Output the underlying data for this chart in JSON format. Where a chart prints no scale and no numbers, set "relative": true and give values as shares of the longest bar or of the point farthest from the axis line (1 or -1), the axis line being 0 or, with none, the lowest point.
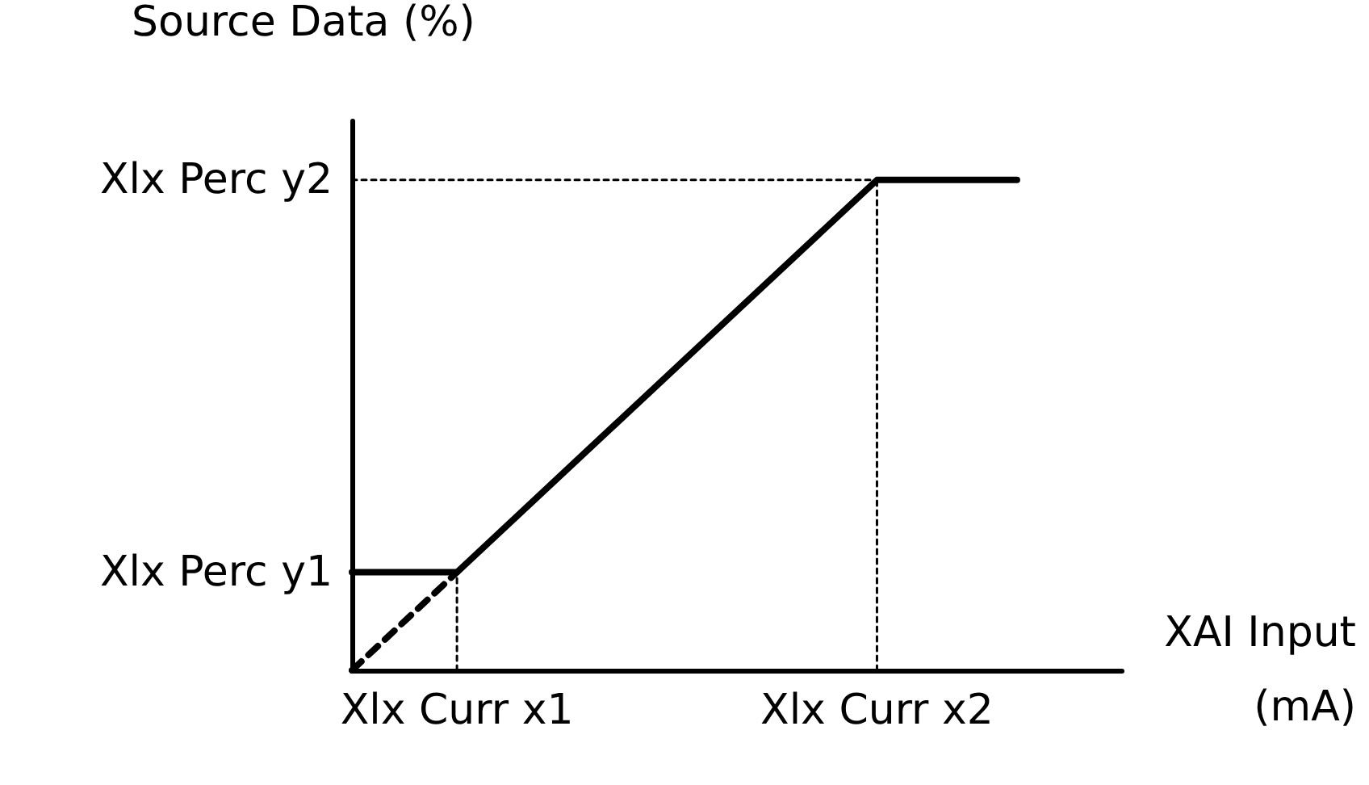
{
  "chart_data": {
    "type": "line",
    "xlabel": "XAI Input\n(mA)",
    "ylabel": "Source Data (%)",
    "relative": true,
    "categories": [
      null,
      null,
      null,
      "Xlx Curr x1",
      null,
      null,
      null,
      null,
      null,
      null,
      null,
      null,
      null,
      null,
      null,
      "Xlx Curr x2",
      null,
      null,
      null,
      null,
      null,
      null,
      null
    ],
    "annotations": [
      "Xlx Perc y1",
      "Xlx Perc y2"
    ],
    "grid": false,
    "marker": "none",
    "series": [
      {
        "color": "#000000",
        "line_style": "solid",
        "values": [
          0.2,
          null,
          null,
          0.2,
          null,
          null,
          null,
          null,
          null,
          null,
          null,
          null,
          null,
          null,
          null,
          1,
          null,
          null,
          null,
          1,
          null,
          null,
          null
        ]
      },
      {
        "color": "#000000",
        "line_style": "dashed",
        "values": [
          0,
          null,
          null,
          0.2,
          null,
          null,
          null,
          null,
          null,
          null,
          null,
          null,
          null,
          null,
          null,
          null,
          null,
          null,
          null,
          null,
          null,
          null,
          null
        ]
      },
      {
        "color": "#000000",
        "line_style": "dotted",
        "values": [
          1,
          null,
          null,
          null,
          null,
          null,
          null,
          null,
          null,
          null,
          null,
          null,
          null,
          null,
          null,
          1,
          null,
          null,
          null,
          null,
          null,
          null,
          null
        ]
      },
      {
        "color": "#000000",
        "line_style": "dotted",
        "x": [
          "Xlx Curr x1",
          "Xlx Curr x1"
        ],
        "values": [
          0,
          0.2
        ]
      },
      {
        "color": "#000000",
        "line_style": "dotted",
        "x": [
          "Xlx Curr x2",
          "Xlx Curr x2"
        ],
        "values": [
          0,
          1
        ]
      }
    ]
  }
}
